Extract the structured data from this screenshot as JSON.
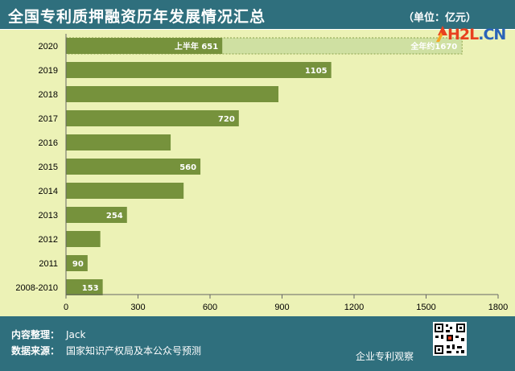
{
  "header": {
    "title": "全国专利质押融资历年发展情况汇总",
    "unit": "（单位：亿元）"
  },
  "chart_data": {
    "type": "bar",
    "orientation": "horizontal",
    "title": "全国专利质押融资历年发展情况汇总",
    "xlabel": "",
    "ylabel": "",
    "xlim": [
      0,
      1800
    ],
    "x_ticks": [
      0,
      300,
      600,
      900,
      1200,
      1500,
      1800
    ],
    "grid": false,
    "categories": [
      "2020",
      "2019",
      "2018",
      "2017",
      "2016",
      "2015",
      "2014",
      "2013",
      "2012",
      "2011",
      "2008-2010"
    ],
    "values": [
      651,
      1105,
      885,
      720,
      436,
      560,
      490,
      254,
      143,
      90,
      153
    ],
    "data_labels": [
      "上半年 651",
      "1105",
      "",
      "720",
      "",
      "560",
      "",
      "254",
      "",
      "90",
      "153"
    ],
    "extra_bar": {
      "category": "2020",
      "value": 1650,
      "label": "全年约1670"
    },
    "colors": {
      "bar": "#76923c",
      "extra_bar": "#cfe0a2",
      "extra_bar_border": "#8aa24a"
    }
  },
  "footer": {
    "compiled_label": "内容整理：",
    "compiled_value": "Jack",
    "source_label": "数据来源：",
    "source_value": "国家知识产权局及本公众号预测",
    "brand": "企业专利观察",
    "logo_h2l": "H2L",
    "logo_cn": ".CN",
    "qr_icon": "qr-code-icon"
  }
}
